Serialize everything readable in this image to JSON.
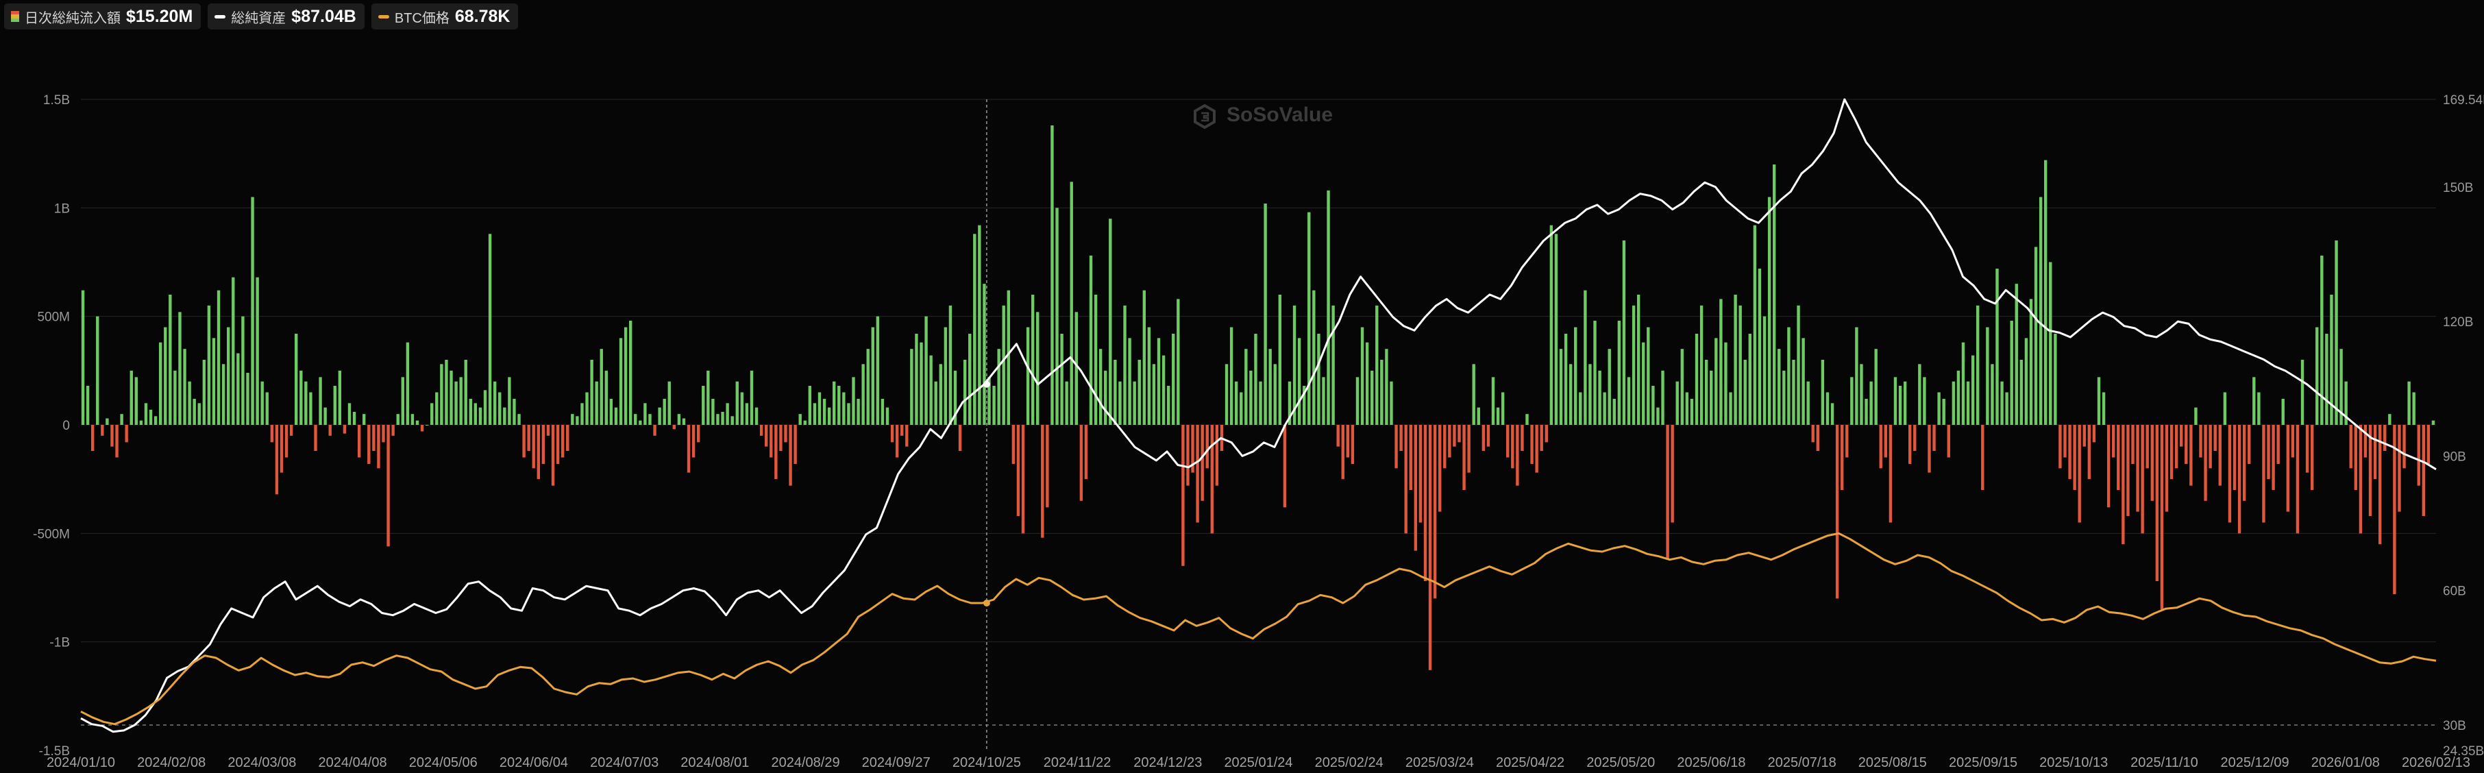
{
  "legend": [
    {
      "label": "日次総純流入額",
      "value": "$15.20M",
      "icon": "bar-swatch-icon"
    },
    {
      "label": "総純資産",
      "value": "$87.04B",
      "icon": "white-line-swatch-icon"
    },
    {
      "label": "BTC価格",
      "value": "68.78K",
      "icon": "orange-line-swatch-icon"
    }
  ],
  "watermark": "SoSoValue",
  "colors": {
    "inflow": "#6ecb63",
    "outflow": "#e0573b",
    "assets": "#ffffff",
    "btc": "#e8a33a",
    "grid": "#262626",
    "bg": "#060606"
  },
  "chart_data": {
    "type": "bar",
    "x_ticks": [
      "2024/01/10",
      "2024/02/08",
      "2024/03/08",
      "2024/04/08",
      "2024/05/06",
      "2024/06/04",
      "2024/07/03",
      "2024/08/01",
      "2024/08/29",
      "2024/09/27",
      "2024/10/25",
      "2024/11/22",
      "2024/12/23",
      "2025/01/24",
      "2025/02/24",
      "2025/03/24",
      "2025/04/22",
      "2025/05/20",
      "2025/06/18",
      "2025/07/18",
      "2025/08/15",
      "2025/09/15",
      "2025/10/13",
      "2025/11/10",
      "2025/12/09",
      "2026/01/08",
      "2026/02/13"
    ],
    "y_left_ticks": [
      "1.5B",
      "1B",
      "500M",
      "0",
      "-500M",
      "-1B",
      "-1.5B"
    ],
    "y_right_ticks": [
      "169.54B",
      "150B",
      "120B",
      "90B",
      "60B",
      "30B",
      "24.35B"
    ],
    "ylim_left": [
      -1.5,
      1.5
    ],
    "ylim_right": [
      24.35,
      169.54
    ],
    "reference_line_right": 30,
    "crosshair_date": "2024/10/25",
    "series": [
      {
        "name": "日次総純流入額",
        "kind": "bar",
        "unit": "USD billions",
        "values": [
          0.62,
          0.18,
          -0.12,
          0.5,
          -0.05,
          0.03,
          -0.1,
          -0.15,
          0.05,
          -0.08,
          0.25,
          0.22,
          0.02,
          0.1,
          0.07,
          0.04,
          0.38,
          0.45,
          0.6,
          0.25,
          0.52,
          0.35,
          0.2,
          0.12,
          0.1,
          0.3,
          0.55,
          0.4,
          0.62,
          0.28,
          0.45,
          0.68,
          0.33,
          0.5,
          0.24,
          1.05,
          0.68,
          0.2,
          0.15,
          -0.08,
          -0.32,
          -0.22,
          -0.15,
          -0.05,
          0.42,
          0.25,
          0.2,
          0.15,
          -0.12,
          0.22,
          0.08,
          -0.05,
          0.18,
          0.25,
          -0.04,
          0.1,
          0.06,
          -0.15,
          0.05,
          -0.18,
          -0.12,
          -0.2,
          -0.08,
          -0.56,
          -0.05,
          0.05,
          0.22,
          0.38,
          0.05,
          0.02,
          -0.03,
          0.0,
          0.1,
          0.15,
          0.28,
          0.3,
          0.25,
          0.2,
          0.22,
          0.3,
          0.12,
          0.1,
          0.08,
          0.16,
          0.88,
          0.2,
          0.15,
          0.08,
          0.22,
          0.12,
          0.05,
          -0.15,
          -0.12,
          -0.2,
          -0.25,
          -0.18,
          -0.05,
          -0.28,
          -0.18,
          -0.15,
          -0.12,
          0.05,
          0.04,
          0.1,
          0.15,
          0.3,
          0.2,
          0.35,
          0.25,
          0.12,
          0.08,
          0.4,
          0.45,
          0.48,
          0.05,
          0.02,
          0.1,
          0.05,
          -0.05,
          0.08,
          0.12,
          0.2,
          -0.02,
          0.05,
          0.03,
          -0.22,
          -0.15,
          -0.08,
          0.18,
          0.25,
          0.12,
          0.05,
          0.06,
          0.1,
          0.04,
          0.2,
          0.15,
          0.1,
          0.25,
          0.08,
          -0.05,
          -0.1,
          -0.15,
          -0.25,
          -0.12,
          -0.08,
          -0.28,
          -0.18,
          0.05,
          0.02,
          0.18,
          0.1,
          0.15,
          0.12,
          0.08,
          0.2,
          0.18,
          0.15,
          0.1,
          0.22,
          0.12,
          0.28,
          0.35,
          0.45,
          0.5,
          0.12,
          0.08,
          -0.08,
          -0.15,
          -0.05,
          -0.1,
          0.35,
          0.42,
          0.38,
          0.5,
          0.32,
          0.2,
          0.28,
          0.45,
          0.55,
          0.25,
          -0.12,
          0.3,
          0.42,
          0.88,
          0.92,
          0.65,
          0.22,
          0.18,
          0.35,
          0.55,
          0.62,
          -0.18,
          -0.42,
          -0.5,
          0.45,
          0.6,
          0.52,
          -0.52,
          -0.38,
          1.38,
          1.0,
          0.42,
          0.2,
          1.12,
          0.52,
          -0.35,
          -0.25,
          0.78,
          0.6,
          0.35,
          0.25,
          0.95,
          0.3,
          0.2,
          0.55,
          0.4,
          0.2,
          0.3,
          0.62,
          0.45,
          0.28,
          0.4,
          0.32,
          0.18,
          0.42,
          0.58,
          -0.65,
          -0.28,
          -0.22,
          -0.45,
          -0.35,
          -0.2,
          -0.5,
          -0.28,
          -0.12,
          0.28,
          0.45,
          0.2,
          0.15,
          0.35,
          0.25,
          0.42,
          0.2,
          1.02,
          0.35,
          0.28,
          0.6,
          -0.38,
          0.2,
          0.55,
          0.4,
          0.18,
          0.98,
          0.62,
          0.42,
          0.22,
          1.08,
          0.55,
          -0.1,
          -0.25,
          -0.15,
          -0.18,
          0.22,
          0.45,
          0.38,
          0.25,
          0.55,
          0.3,
          0.35,
          0.2,
          -0.2,
          -0.12,
          -0.5,
          -0.3,
          -0.58,
          -0.45,
          -0.72,
          -1.13,
          -0.8,
          -0.4,
          -0.2,
          -0.15,
          -0.1,
          -0.08,
          -0.3,
          -0.22,
          0.28,
          0.08,
          -0.12,
          -0.1,
          0.22,
          0.08,
          0.15,
          -0.15,
          -0.2,
          -0.28,
          -0.12,
          0.05,
          -0.18,
          -0.22,
          -0.12,
          -0.08,
          0.92,
          0.88,
          0.35,
          0.42,
          0.28,
          0.45,
          0.15,
          0.62,
          0.28,
          0.48,
          0.25,
          0.15,
          0.35,
          0.12,
          0.48,
          0.85,
          0.22,
          0.55,
          0.6,
          0.38,
          0.45,
          0.18,
          0.08,
          0.25,
          -0.62,
          -0.45,
          0.2,
          0.35,
          0.15,
          0.12,
          0.42,
          0.55,
          0.3,
          0.25,
          0.4,
          0.58,
          0.38,
          0.15,
          0.6,
          0.55,
          0.3,
          0.42,
          0.92,
          0.72,
          0.5,
          1.05,
          1.2,
          0.35,
          0.25,
          0.45,
          0.3,
          0.55,
          0.4,
          0.2,
          -0.08,
          -0.12,
          0.3,
          0.15,
          0.1,
          -0.8,
          -0.3,
          -0.15,
          0.22,
          0.45,
          0.28,
          0.12,
          0.2,
          0.35,
          -0.2,
          -0.15,
          -0.45,
          0.22,
          0.18,
          0.2,
          -0.18,
          -0.12,
          0.28,
          0.22,
          -0.22,
          -0.12,
          0.15,
          0.12,
          -0.15,
          0.2,
          0.25,
          0.38,
          0.2,
          0.32,
          0.55,
          -0.3,
          0.45,
          0.28,
          0.72,
          0.2,
          0.15,
          0.48,
          0.65,
          0.3,
          0.4,
          0.58,
          0.82,
          1.05,
          1.22,
          0.75,
          0.42,
          -0.2,
          -0.15,
          -0.25,
          -0.3,
          -0.45,
          -0.1,
          -0.25,
          -0.08,
          0.22,
          0.15,
          -0.38,
          -0.15,
          -0.3,
          -0.55,
          -0.42,
          -0.18,
          -0.4,
          -0.5,
          -0.2,
          -0.35,
          -0.72,
          -0.85,
          -0.4,
          -0.25,
          -0.2,
          -0.1,
          -0.18,
          -0.28,
          0.08,
          -0.15,
          -0.35,
          -0.2,
          -0.12,
          -0.28,
          0.15,
          -0.45,
          -0.3,
          -0.5,
          -0.35,
          -0.18,
          0.22,
          0.15,
          -0.45,
          -0.25,
          -0.3,
          -0.18,
          0.12,
          -0.4,
          -0.15,
          -0.5,
          0.3,
          -0.22,
          -0.3,
          0.45,
          0.78,
          0.42,
          0.6,
          0.85,
          0.35,
          0.2,
          -0.2,
          -0.3,
          -0.5,
          -0.15,
          -0.42,
          -0.25,
          -0.55,
          -0.12,
          0.05,
          -0.78,
          -0.4,
          -0.2,
          0.2,
          0.15,
          -0.28,
          -0.42,
          -0.18,
          0.02
        ]
      },
      {
        "name": "総純資産",
        "kind": "line",
        "unit": "USD billions",
        "values": [
          31.5,
          30.2,
          29.8,
          28.5,
          28.8,
          30.0,
          32.2,
          35.5,
          40.5,
          42.0,
          43.0,
          45.5,
          48.0,
          52.5,
          56.0,
          55.0,
          54.0,
          58.5,
          60.5,
          62.0,
          58.0,
          59.5,
          61.0,
          59.0,
          57.5,
          56.5,
          58.0,
          57.0,
          55.0,
          54.5,
          55.5,
          57.0,
          56.0,
          55.0,
          55.8,
          58.5,
          61.5,
          62.0,
          60.0,
          58.5,
          56.0,
          55.5,
          60.5,
          60.0,
          58.5,
          58.0,
          59.5,
          61.0,
          60.5,
          60.0,
          56.0,
          55.5,
          54.5,
          56.0,
          57.0,
          58.5,
          60.0,
          60.5,
          59.8,
          57.5,
          54.5,
          58.0,
          59.5,
          60.0,
          58.5,
          60.0,
          57.5,
          55.0,
          56.5,
          59.5,
          62.0,
          64.5,
          68.5,
          72.5,
          74.0,
          80.0,
          86.0,
          89.5,
          92.0,
          96.0,
          94.0,
          98.0,
          102.0,
          104.0,
          106.0,
          109.0,
          112.0,
          115.0,
          110.0,
          106.0,
          108.0,
          110.0,
          112.0,
          109.0,
          105.0,
          101.0,
          98.0,
          95.0,
          92.0,
          90.5,
          89.0,
          91.0,
          88.0,
          87.5,
          89.0,
          92.0,
          94.0,
          93.0,
          90.0,
          91.0,
          93.0,
          92.0,
          97.0,
          101.0,
          105.0,
          110.0,
          116.0,
          120.0,
          126.0,
          130.0,
          127.0,
          124.0,
          121.0,
          119.0,
          118.0,
          121.0,
          123.5,
          125.0,
          123.0,
          122.0,
          124.0,
          126.0,
          125.0,
          128.0,
          132.0,
          135.0,
          138.0,
          140.0,
          142.0,
          143.0,
          145.0,
          146.0,
          144.0,
          145.0,
          147.0,
          148.5,
          148.0,
          147.0,
          145.0,
          146.5,
          149.0,
          151.0,
          150.0,
          147.0,
          145.0,
          143.0,
          142.0,
          144.5,
          147.0,
          149.0,
          153.0,
          155.0,
          158.0,
          162.0,
          169.54,
          165.0,
          160.0,
          157.0,
          154.0,
          151.0,
          149.0,
          147.0,
          144.0,
          140.0,
          136.0,
          130.0,
          128.0,
          125.0,
          124.0,
          127.0,
          125.0,
          123.0,
          120.0,
          118.0,
          117.5,
          116.5,
          118.5,
          120.5,
          122.0,
          121.0,
          119.0,
          118.5,
          117.0,
          116.5,
          118.0,
          120.0,
          119.5,
          117.0,
          116.0,
          115.5,
          114.5,
          113.5,
          112.5,
          111.5,
          110.0,
          109.0,
          107.5,
          106.0,
          104.0,
          102.0,
          100.0,
          98.0,
          96.0,
          94.0,
          93.0,
          92.0,
          90.5,
          89.5,
          88.5,
          87.04
        ]
      },
      {
        "name": "BTC価格",
        "kind": "line",
        "unit": "USD thousands",
        "values": [
          46.5,
          44.0,
          42.0,
          41.0,
          43.0,
          45.5,
          48.5,
          52.0,
          57.5,
          63.0,
          68.0,
          71.0,
          70.0,
          67.0,
          64.5,
          66.0,
          70.0,
          67.0,
          64.5,
          62.5,
          63.5,
          62.0,
          61.5,
          63.0,
          67.0,
          68.0,
          66.5,
          69.0,
          71.0,
          70.0,
          67.5,
          65.0,
          64.0,
          60.5,
          58.5,
          56.5,
          57.5,
          62.5,
          64.5,
          66.0,
          65.5,
          61.5,
          56.5,
          55.0,
          54.0,
          57.5,
          59.0,
          58.5,
          60.5,
          61.0,
          59.5,
          60.5,
          62.0,
          63.5,
          64.0,
          62.5,
          60.5,
          63.0,
          61.0,
          64.5,
          67.0,
          68.5,
          66.5,
          63.5,
          67.0,
          69.0,
          72.5,
          76.5,
          80.5,
          88.0,
          91.0,
          94.5,
          98.0,
          96.0,
          95.5,
          99.0,
          101.5,
          98.0,
          95.5,
          94.0,
          94.0,
          95.5,
          101.0,
          104.5,
          102.0,
          105.0,
          104.0,
          101.0,
          97.5,
          95.5,
          96.0,
          97.0,
          93.0,
          90.0,
          87.5,
          86.0,
          84.0,
          82.0,
          86.5,
          84.0,
          85.5,
          87.5,
          83.0,
          80.5,
          78.5,
          82.5,
          85.0,
          88.0,
          93.5,
          95.0,
          97.5,
          96.5,
          94.0,
          97.0,
          102.0,
          104.0,
          106.5,
          109.0,
          108.0,
          105.5,
          103.5,
          101.0,
          104.0,
          106.0,
          108.0,
          110.0,
          108.0,
          106.5,
          109.0,
          111.5,
          115.5,
          118.0,
          120.0,
          118.5,
          117.0,
          116.5,
          118.0,
          119.0,
          117.5,
          115.5,
          114.5,
          113.0,
          114.0,
          112.0,
          111.0,
          112.5,
          113.0,
          115.0,
          116.0,
          114.5,
          113.0,
          115.0,
          117.5,
          119.5,
          121.5,
          123.5,
          124.5,
          122.0,
          119.0,
          116.0,
          113.0,
          111.0,
          112.5,
          115.0,
          114.0,
          111.5,
          108.0,
          106.0,
          103.5,
          101.0,
          98.5,
          95.0,
          92.0,
          89.5,
          86.5,
          87.0,
          85.5,
          87.5,
          91.0,
          92.5,
          90.0,
          89.5,
          88.5,
          87.0,
          89.5,
          91.5,
          92.0,
          94.0,
          96.0,
          95.0,
          92.0,
          90.0,
          88.5,
          88.0,
          86.0,
          84.5,
          83.0,
          82.0,
          80.0,
          78.5,
          76.0,
          74.0,
          72.0,
          70.0,
          68.0,
          67.5,
          68.5,
          70.5,
          69.5,
          68.78
        ]
      }
    ],
    "grid": true,
    "legend_position": "top-left"
  }
}
